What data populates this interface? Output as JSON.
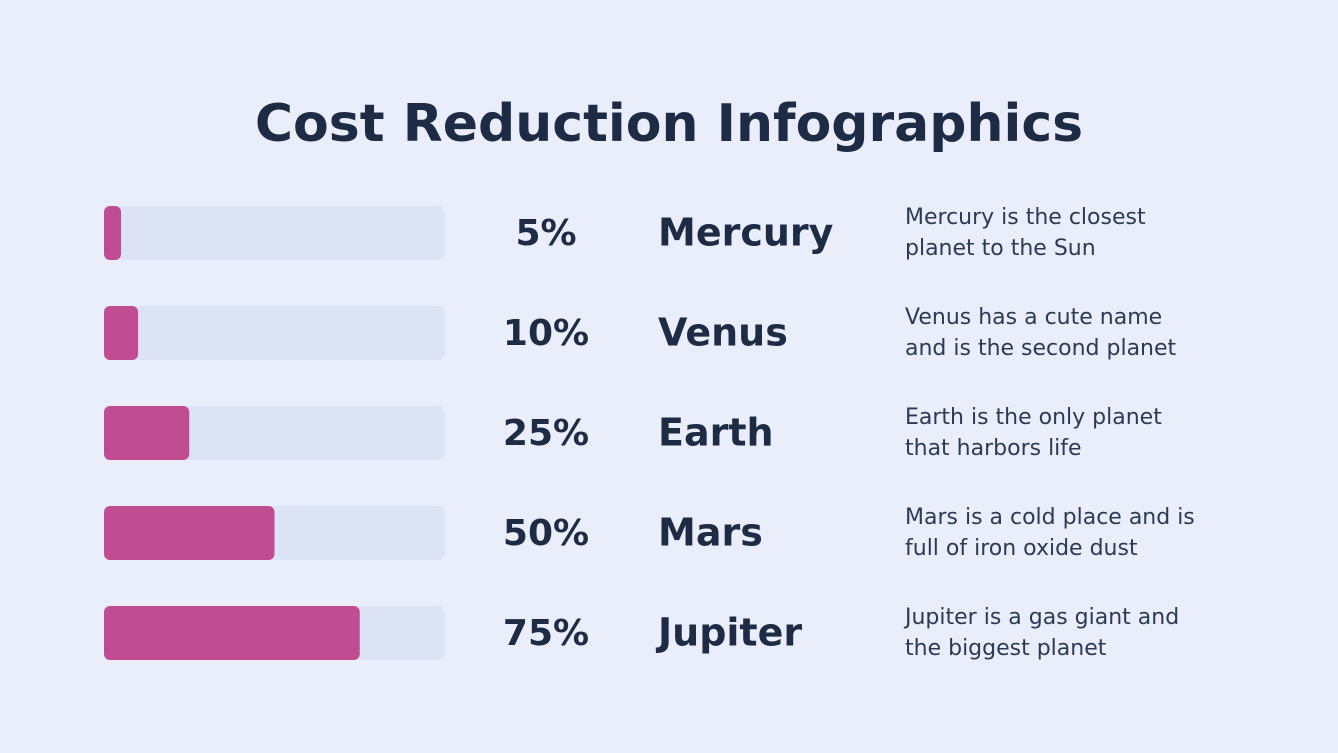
{
  "chart_data": {
    "type": "bar",
    "title": "Cost Reduction Infographics",
    "categories": [
      "Mercury",
      "Venus",
      "Earth",
      "Mars",
      "Jupiter"
    ],
    "values": [
      5,
      10,
      25,
      50,
      75
    ],
    "value_labels": [
      "5%",
      "10%",
      "25%",
      "50%",
      "75%"
    ],
    "descriptions": [
      [
        "Mercury is the closest",
        "planet to the Sun"
      ],
      [
        "Venus has a cute name",
        "and is the second planet"
      ],
      [
        "Earth is the only planet",
        "that harbors life"
      ],
      [
        "Mars is a cold place and is",
        "full of iron oxide dust"
      ],
      [
        "Jupiter is a gas giant and",
        "the biggest planet"
      ]
    ],
    "xlim": [
      0,
      100
    ],
    "color": "#c04d92",
    "track_color": "#dbe3f5"
  }
}
